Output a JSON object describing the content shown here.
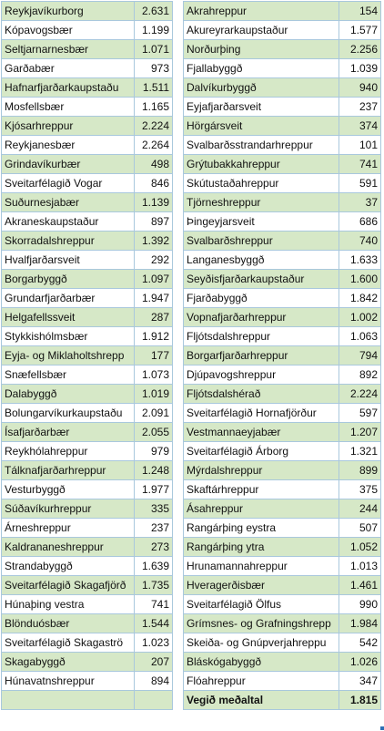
{
  "left_table": {
    "rows": [
      {
        "name": "Reykjavíkurborg",
        "value": "2.631"
      },
      {
        "name": "Kópavogsbær",
        "value": "1.199"
      },
      {
        "name": "Seltjarnarnesbær",
        "value": "1.071"
      },
      {
        "name": "Garðabær",
        "value": "973"
      },
      {
        "name": "Hafnarfjarðarkaupstaðu",
        "value": "1.511"
      },
      {
        "name": "Mosfellsbær",
        "value": "1.165"
      },
      {
        "name": "Kjósarhreppur",
        "value": "2.224"
      },
      {
        "name": "Reykjanesbær",
        "value": "2.264"
      },
      {
        "name": "Grindavíkurbær",
        "value": "498"
      },
      {
        "name": "Sveitarfélagið Vogar",
        "value": "846"
      },
      {
        "name": "Suðurnesjabær",
        "value": "1.139"
      },
      {
        "name": "Akraneskaupstaður",
        "value": "897"
      },
      {
        "name": "Skorradalshreppur",
        "value": "1.392"
      },
      {
        "name": "Hvalfjarðarsveit",
        "value": "292"
      },
      {
        "name": "Borgarbyggð",
        "value": "1.097"
      },
      {
        "name": "Grundarfjarðarbær",
        "value": "1.947"
      },
      {
        "name": "Helgafellssveit",
        "value": "287"
      },
      {
        "name": "Stykkishólmsbær",
        "value": "1.912"
      },
      {
        "name": "Eyja- og Miklaholtshrepp",
        "value": "177"
      },
      {
        "name": "Snæfellsbær",
        "value": "1.073"
      },
      {
        "name": "Dalabyggð",
        "value": "1.019"
      },
      {
        "name": "Bolungarvíkurkaupstaðu",
        "value": "2.091"
      },
      {
        "name": "Ísafjarðarbær",
        "value": "2.055"
      },
      {
        "name": "Reykhólahreppur",
        "value": "979"
      },
      {
        "name": "Tálknafjarðarhreppur",
        "value": "1.248"
      },
      {
        "name": "Vesturbyggð",
        "value": "1.977"
      },
      {
        "name": "Súðavíkurhreppur",
        "value": "335"
      },
      {
        "name": "Árneshreppur",
        "value": "237"
      },
      {
        "name": "Kaldrananeshreppur",
        "value": "273"
      },
      {
        "name": "Strandabyggð",
        "value": "1.639"
      },
      {
        "name": "Sveitarfélagið Skagafjörð",
        "value": "1.735"
      },
      {
        "name": "Húnaþing vestra",
        "value": "741"
      },
      {
        "name": "Blönduósbær",
        "value": "1.544"
      },
      {
        "name": "Sveitarfélagið Skagaströ",
        "value": "1.023"
      },
      {
        "name": "Skagabyggð",
        "value": "207"
      },
      {
        "name": "Húnavatnshreppur",
        "value": "894"
      },
      {
        "name": "",
        "value": ""
      }
    ]
  },
  "right_table": {
    "rows": [
      {
        "name": "Akrahreppur",
        "value": "154"
      },
      {
        "name": "Akureyrarkaupstaður",
        "value": "1.577"
      },
      {
        "name": "Norðurþing",
        "value": "2.256"
      },
      {
        "name": "Fjallabyggð",
        "value": "1.039"
      },
      {
        "name": "Dalvíkurbyggð",
        "value": "940"
      },
      {
        "name": "Eyjafjarðarsveit",
        "value": "237"
      },
      {
        "name": "Hörgársveit",
        "value": "374"
      },
      {
        "name": "Svalbarðsstrandarhreppur",
        "value": "101"
      },
      {
        "name": "Grýtubakkahreppur",
        "value": "741"
      },
      {
        "name": "Skútustaðahreppur",
        "value": "591"
      },
      {
        "name": "Tjörneshreppur",
        "value": "37"
      },
      {
        "name": "Þingeyjarsveit",
        "value": "686"
      },
      {
        "name": "Svalbarðshreppur",
        "value": "740"
      },
      {
        "name": "Langanesbyggð",
        "value": "1.633"
      },
      {
        "name": "Seyðisfjarðarkaupstaður",
        "value": "1.600"
      },
      {
        "name": "Fjarðabyggð",
        "value": "1.842"
      },
      {
        "name": "Vopnafjarðarhreppur",
        "value": "1.002"
      },
      {
        "name": "Fljótsdalshreppur",
        "value": "1.063"
      },
      {
        "name": "Borgarfjarðarhreppur",
        "value": "794"
      },
      {
        "name": "Djúpavogshreppur",
        "value": "892"
      },
      {
        "name": "Fljótsdalshérað",
        "value": "2.224"
      },
      {
        "name": "Sveitarfélagið Hornafjörður",
        "value": "597"
      },
      {
        "name": "Vestmannaeyjabær",
        "value": "1.207"
      },
      {
        "name": "Sveitarfélagið Árborg",
        "value": "1.321"
      },
      {
        "name": "Mýrdalshreppur",
        "value": "899"
      },
      {
        "name": "Skaftárhreppur",
        "value": "375"
      },
      {
        "name": "Ásahreppur",
        "value": "244"
      },
      {
        "name": "Rangárþing eystra",
        "value": "507"
      },
      {
        "name": "Rangárþing ytra",
        "value": "1.052"
      },
      {
        "name": "Hrunamannahreppur",
        "value": "1.013"
      },
      {
        "name": "Hveragerðisbær",
        "value": "1.461"
      },
      {
        "name": "Sveitarfélagið Ölfus",
        "value": "990"
      },
      {
        "name": "Grímsnes- og Grafningshrepp",
        "value": "1.984"
      },
      {
        "name": "Skeiða- og Gnúpverjahreppu",
        "value": "542"
      },
      {
        "name": "Bláskógabyggð",
        "value": "1.026"
      },
      {
        "name": "Flóahreppur",
        "value": "347"
      },
      {
        "name": "Vegið meðaltal",
        "value": "1.815"
      }
    ]
  }
}
